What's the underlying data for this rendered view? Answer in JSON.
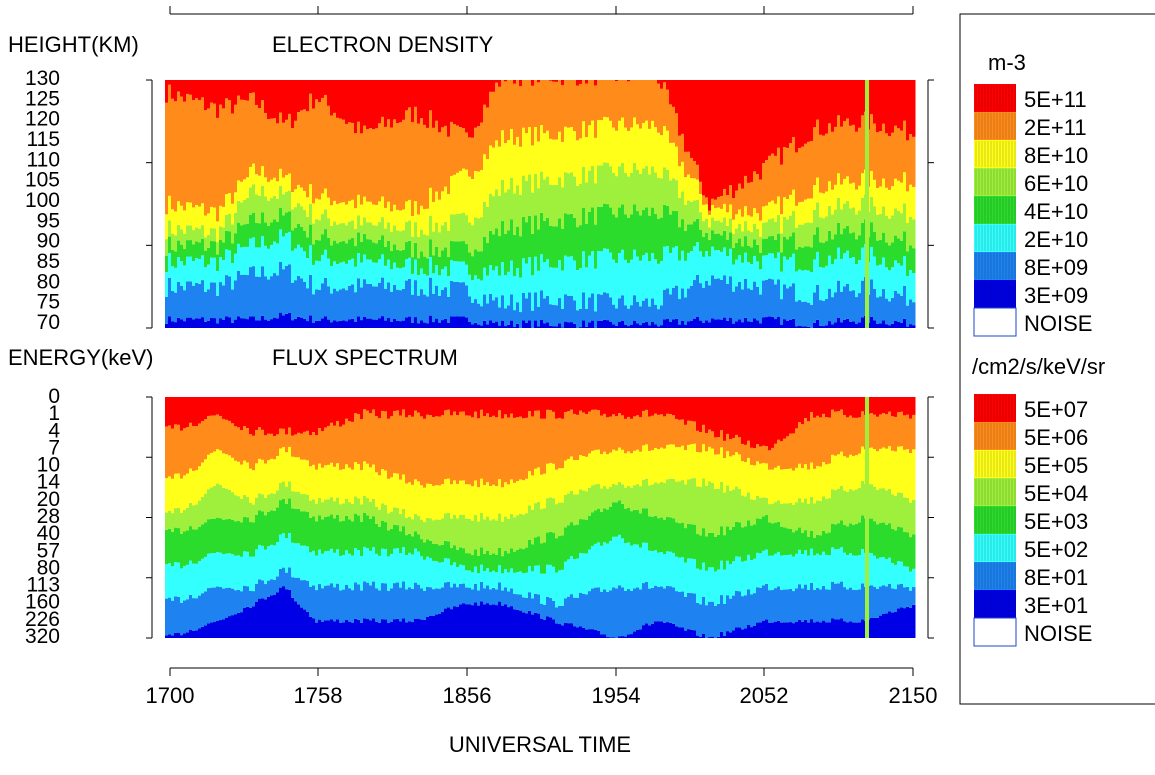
{
  "top_panel": {
    "ylabel": "HEIGHT(KM)",
    "title": "ELECTRON DENSITY",
    "yticks": [
      "130",
      "125",
      "120",
      "115",
      "110",
      "105",
      "100",
      "95",
      "90",
      "85",
      "80",
      "75",
      "70"
    ]
  },
  "bottom_panel": {
    "ylabel": "ENERGY(keV)",
    "title": "FLUX SPECTRUM",
    "yticks": [
      "0",
      "1",
      "4",
      "7",
      "10",
      "14",
      "20",
      "28",
      "40",
      "57",
      "80",
      "113",
      "160",
      "226",
      "320"
    ]
  },
  "xaxis": {
    "label": "UNIVERSAL TIME",
    "ticks": [
      "1700",
      "1758",
      "1856",
      "1954",
      "2052",
      "2150"
    ]
  },
  "legend_density": {
    "unit": "m-3",
    "entries": [
      {
        "label": "5E+11",
        "color": "#ff0000"
      },
      {
        "label": "2E+11",
        "color": "#ff8c1a"
      },
      {
        "label": "8E+10",
        "color": "#ffff1a"
      },
      {
        "label": "6E+10",
        "color": "#9ef03c"
      },
      {
        "label": "4E+10",
        "color": "#2cdc2c"
      },
      {
        "label": "2E+10",
        "color": "#33ffff"
      },
      {
        "label": "8E+09",
        "color": "#1e82f0"
      },
      {
        "label": "3E+09",
        "color": "#0000e6"
      },
      {
        "label": "NOISE",
        "color": "#ffffff"
      }
    ]
  },
  "legend_flux": {
    "unit": "/cm2/s/keV/sr",
    "entries": [
      {
        "label": "5E+07",
        "color": "#ff0000"
      },
      {
        "label": "5E+06",
        "color": "#ff8c1a"
      },
      {
        "label": "5E+05",
        "color": "#ffff1a"
      },
      {
        "label": "5E+04",
        "color": "#9ef03c"
      },
      {
        "label": "5E+03",
        "color": "#2cdc2c"
      },
      {
        "label": "5E+02",
        "color": "#33ffff"
      },
      {
        "label": "8E+01",
        "color": "#1e82f0"
      },
      {
        "label": "3E+01",
        "color": "#0000e6"
      },
      {
        "label": "NOISE",
        "color": "#ffffff"
      }
    ]
  },
  "chart_data": [
    {
      "type": "heatmap",
      "title": "ELECTRON DENSITY",
      "xlabel": "UNIVERSAL TIME",
      "ylabel": "HEIGHT(KM)",
      "x_ticks": [
        "1700",
        "1758",
        "1856",
        "1954",
        "2052",
        "2150"
      ],
      "y_ticks": [
        "70",
        "75",
        "80",
        "85",
        "90",
        "95",
        "100",
        "105",
        "110",
        "115",
        "120",
        "125",
        "130"
      ],
      "ylim": [
        70,
        130
      ],
      "colorbar_unit": "m-3",
      "levels": [
        "3E+09",
        "8E+09",
        "2E+10",
        "4E+10",
        "6E+10",
        "8E+10",
        "2E+11",
        "5E+11"
      ],
      "level_boundary_height_km": [
        {
          "time": "1700",
          "bounds": [
            72,
            80,
            86,
            90,
            94,
            100,
            127
          ]
        },
        {
          "time": "1720",
          "bounds": [
            72,
            80,
            86,
            90,
            93,
            98,
            123
          ]
        },
        {
          "time": "1734",
          "bounds": [
            72,
            83,
            90,
            96,
            103,
            108,
            125
          ]
        },
        {
          "time": "1746",
          "bounds": [
            73,
            84,
            92,
            97,
            102,
            106,
            119
          ]
        },
        {
          "time": "1758",
          "bounds": [
            72,
            80,
            87,
            92,
            97,
            102,
            126
          ]
        },
        {
          "time": "1816",
          "bounds": [
            72,
            80,
            86,
            91,
            95,
            100,
            117
          ]
        },
        {
          "time": "1836",
          "bounds": [
            72,
            80,
            85,
            89,
            94,
            99,
            122
          ]
        },
        {
          "time": "1856",
          "bounds": [
            72,
            79,
            84,
            89,
            96,
            107,
            116
          ]
        },
        {
          "time": "1910",
          "bounds": [
            71,
            76,
            84,
            94,
            104,
            116,
            131
          ]
        },
        {
          "time": "1930",
          "bounds": [
            71,
            77,
            86,
            96,
            106,
            117,
            131
          ]
        },
        {
          "time": "1954",
          "bounds": [
            71,
            76,
            87,
            98,
            108,
            119,
            131
          ]
        },
        {
          "time": "2010",
          "bounds": [
            71,
            76,
            87,
            98,
            108,
            119,
            131
          ]
        },
        {
          "time": "2030",
          "bounds": [
            72,
            82,
            89,
            93,
            96,
            99,
            100
          ]
        },
        {
          "time": "2052",
          "bounds": [
            72,
            80,
            86,
            90,
            94,
            98,
            109
          ]
        },
        {
          "time": "2110",
          "bounds": [
            71,
            78,
            86,
            92,
            98,
            104,
            118
          ]
        },
        {
          "time": "2130",
          "bounds": [
            72,
            80,
            88,
            94,
            100,
            106,
            120
          ]
        },
        {
          "time": "2150",
          "bounds": [
            71,
            77,
            84,
            90,
            97,
            105,
            117
          ]
        }
      ]
    },
    {
      "type": "heatmap",
      "title": "FLUX SPECTRUM",
      "xlabel": "UNIVERSAL TIME",
      "ylabel": "ENERGY(keV)",
      "x_ticks": [
        "1700",
        "1758",
        "1856",
        "1954",
        "2052",
        "2150"
      ],
      "y_ticks": [
        "0",
        "1",
        "4",
        "7",
        "10",
        "14",
        "20",
        "28",
        "40",
        "57",
        "80",
        "113",
        "160",
        "226",
        "320"
      ],
      "colorbar_unit": "/cm2/s/keV/sr",
      "levels": [
        "3E+01",
        "8E+01",
        "5E+02",
        "5E+03",
        "5E+04",
        "5E+05",
        "5E+06",
        "5E+07"
      ],
      "level_boundary_energy_keV": [
        {
          "time": "1700",
          "bounds": [
            320,
            160,
            80,
            40,
            28,
            14,
            4
          ]
        },
        {
          "time": "1720",
          "bounds": [
            226,
            113,
            57,
            28,
            14,
            7,
            1
          ]
        },
        {
          "time": "1734",
          "bounds": [
            160,
            113,
            57,
            28,
            20,
            10,
            4
          ]
        },
        {
          "time": "1746",
          "bounds": [
            113,
            80,
            40,
            20,
            14,
            7,
            4
          ]
        },
        {
          "time": "1758",
          "bounds": [
            226,
            113,
            57,
            28,
            20,
            10,
            4
          ]
        },
        {
          "time": "1816",
          "bounds": [
            226,
            113,
            57,
            28,
            20,
            10,
            1
          ]
        },
        {
          "time": "1836",
          "bounds": [
            226,
            113,
            57,
            40,
            28,
            14,
            1
          ]
        },
        {
          "time": "1856",
          "bounds": [
            160,
            113,
            80,
            57,
            28,
            14,
            1
          ]
        },
        {
          "time": "1910",
          "bounds": [
            160,
            113,
            80,
            57,
            28,
            14,
            1
          ]
        },
        {
          "time": "1930",
          "bounds": [
            226,
            160,
            80,
            40,
            20,
            10,
            1
          ]
        },
        {
          "time": "1954",
          "bounds": [
            320,
            113,
            40,
            20,
            14,
            7,
            1
          ]
        },
        {
          "time": "2010",
          "bounds": [
            226,
            113,
            57,
            28,
            14,
            7,
            1
          ]
        },
        {
          "time": "2030",
          "bounds": [
            320,
            160,
            80,
            40,
            14,
            7,
            4
          ]
        },
        {
          "time": "2052",
          "bounds": [
            226,
            113,
            57,
            28,
            20,
            10,
            7
          ]
        },
        {
          "time": "2110",
          "bounds": [
            226,
            113,
            57,
            40,
            20,
            10,
            1
          ]
        },
        {
          "time": "2130",
          "bounds": [
            226,
            113,
            57,
            28,
            14,
            7,
            1
          ]
        },
        {
          "time": "2150",
          "bounds": [
            160,
            113,
            80,
            40,
            20,
            7,
            1
          ]
        }
      ]
    }
  ]
}
